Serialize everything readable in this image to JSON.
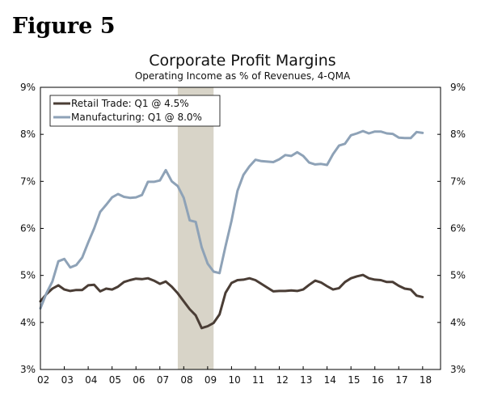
{
  "figure_label": "Figure 5",
  "chart_data": {
    "type": "line",
    "title": "Corporate Profit Margins",
    "subtitle": "Operating Income as % of Revenues, 4-QMA",
    "xlabel": "",
    "ylabel": "",
    "ylim": [
      3,
      9
    ],
    "xlim": [
      2002.0,
      2018.75
    ],
    "y_ticks": [
      "3%",
      "4%",
      "5%",
      "6%",
      "7%",
      "8%",
      "9%"
    ],
    "y_ticks_right": [
      "3%",
      "4%",
      "5%",
      "6%",
      "7%",
      "8%",
      "9%"
    ],
    "x_ticks": [
      "02",
      "03",
      "04",
      "05",
      "06",
      "07",
      "08",
      "09",
      "10",
      "11",
      "12",
      "13",
      "14",
      "15",
      "16",
      "17",
      "18"
    ],
    "recession": {
      "start": 2007.75,
      "end": 2009.25
    },
    "legend_position": "top-left",
    "colors": {
      "retail": "#4a3d35",
      "manufacturing": "#8ea2b7",
      "recession": "#d8d4c8"
    },
    "series": [
      {
        "name": "Retail Trade: Q1 @ 4.5%",
        "x": [
          2002.0,
          2002.25,
          2002.5,
          2002.75,
          2003.0,
          2003.25,
          2003.5,
          2003.75,
          2004.0,
          2004.25,
          2004.5,
          2004.75,
          2005.0,
          2005.25,
          2005.5,
          2005.75,
          2006.0,
          2006.25,
          2006.5,
          2006.75,
          2007.0,
          2007.25,
          2007.5,
          2007.75,
          2008.0,
          2008.25,
          2008.5,
          2008.75,
          2009.0,
          2009.25,
          2009.5,
          2009.75,
          2010.0,
          2010.25,
          2010.5,
          2010.75,
          2011.0,
          2011.25,
          2011.5,
          2011.75,
          2012.0,
          2012.25,
          2012.5,
          2012.75,
          2013.0,
          2013.25,
          2013.5,
          2013.75,
          2014.0,
          2014.25,
          2014.5,
          2014.75,
          2015.0,
          2015.25,
          2015.5,
          2015.75,
          2016.0,
          2016.25,
          2016.5,
          2016.75,
          2017.0,
          2017.25,
          2017.5,
          2017.75,
          2018.0
        ],
        "values": [
          4.45,
          4.6,
          4.72,
          4.79,
          4.7,
          4.67,
          4.69,
          4.69,
          4.79,
          4.8,
          4.66,
          4.72,
          4.7,
          4.76,
          4.86,
          4.9,
          4.93,
          4.92,
          4.94,
          4.89,
          4.82,
          4.87,
          4.76,
          4.62,
          4.45,
          4.28,
          4.15,
          3.88,
          3.92,
          3.99,
          4.17,
          4.63,
          4.84,
          4.9,
          4.91,
          4.94,
          4.9,
          4.82,
          4.74,
          4.66,
          4.67,
          4.67,
          4.68,
          4.67,
          4.7,
          4.8,
          4.89,
          4.85,
          4.77,
          4.7,
          4.73,
          4.86,
          4.94,
          4.98,
          5.01,
          4.94,
          4.91,
          4.9,
          4.86,
          4.86,
          4.78,
          4.72,
          4.7,
          4.57,
          4.54
        ]
      },
      {
        "name": "Manufacturing: Q1 @ 8.0%",
        "x": [
          2002.0,
          2002.25,
          2002.5,
          2002.75,
          2003.0,
          2003.25,
          2003.5,
          2003.75,
          2004.0,
          2004.25,
          2004.5,
          2004.75,
          2005.0,
          2005.25,
          2005.5,
          2005.75,
          2006.0,
          2006.25,
          2006.5,
          2006.75,
          2007.0,
          2007.25,
          2007.5,
          2007.75,
          2008.0,
          2008.25,
          2008.5,
          2008.75,
          2009.0,
          2009.25,
          2009.5,
          2009.75,
          2010.0,
          2010.25,
          2010.5,
          2010.75,
          2011.0,
          2011.25,
          2011.5,
          2011.75,
          2012.0,
          2012.25,
          2012.5,
          2012.75,
          2013.0,
          2013.25,
          2013.5,
          2013.75,
          2014.0,
          2014.25,
          2014.5,
          2014.75,
          2015.0,
          2015.25,
          2015.5,
          2015.75,
          2016.0,
          2016.25,
          2016.5,
          2016.75,
          2017.0,
          2017.25,
          2017.5,
          2017.75,
          2018.0
        ],
        "values": [
          4.3,
          4.62,
          4.87,
          5.3,
          5.35,
          5.17,
          5.22,
          5.38,
          5.7,
          6.0,
          6.35,
          6.5,
          6.66,
          6.73,
          6.67,
          6.65,
          6.66,
          6.71,
          6.99,
          6.99,
          7.02,
          7.24,
          7.0,
          6.9,
          6.65,
          6.17,
          6.14,
          5.6,
          5.25,
          5.08,
          5.05,
          5.62,
          6.16,
          6.8,
          7.14,
          7.32,
          7.46,
          7.43,
          7.42,
          7.41,
          7.47,
          7.56,
          7.54,
          7.62,
          7.54,
          7.4,
          7.36,
          7.37,
          7.35,
          7.58,
          7.76,
          7.8,
          7.98,
          8.02,
          8.07,
          8.02,
          8.06,
          8.06,
          8.02,
          8.01,
          7.93,
          7.92,
          7.92,
          8.05,
          8.03
        ]
      }
    ]
  }
}
